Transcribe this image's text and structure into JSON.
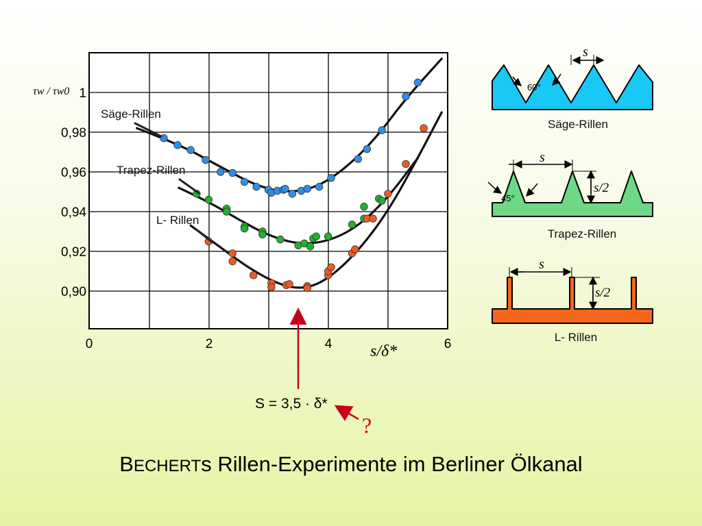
{
  "chart_data": [
    {
      "type": "scatter",
      "title": "",
      "xlabel": "s/δ*",
      "ylabel": "τw / τw0",
      "xlim": [
        0,
        6
      ],
      "ylim": [
        0.882,
        1.02
      ],
      "xticks": [
        "0",
        "2",
        "4",
        "6"
      ],
      "yticks": [
        "1",
        "0,98",
        "0,96",
        "0,94",
        "0,92",
        "0,90"
      ],
      "grid": true,
      "series": [
        {
          "name": "Säge-Rillen",
          "color": "#2f8fe8",
          "points": [
            [
              1.25,
              0.977
            ],
            [
              1.48,
              0.9735
            ],
            [
              1.7,
              0.971
            ],
            [
              1.95,
              0.966
            ],
            [
              2.2,
              0.96
            ],
            [
              2.4,
              0.9595
            ],
            [
              2.6,
              0.955
            ],
            [
              2.8,
              0.9525
            ],
            [
              3.0,
              0.951
            ],
            [
              3.05,
              0.9495
            ],
            [
              3.15,
              0.9505
            ],
            [
              3.25,
              0.951
            ],
            [
              3.28,
              0.9515
            ],
            [
              3.4,
              0.949
            ],
            [
              3.55,
              0.9505
            ],
            [
              3.65,
              0.9515
            ],
            [
              3.85,
              0.9525
            ],
            [
              4.05,
              0.957
            ],
            [
              4.5,
              0.9665
            ],
            [
              4.65,
              0.9715
            ],
            [
              4.9,
              0.981
            ],
            [
              5.3,
              0.998
            ],
            [
              5.5,
              1.005
            ]
          ],
          "fit": [
            [
              0.8,
              0.982
            ],
            [
              1.5,
              0.974
            ],
            [
              2.2,
              0.9625
            ],
            [
              2.8,
              0.953
            ],
            [
              3.3,
              0.9495
            ],
            [
              3.8,
              0.952
            ],
            [
              4.3,
              0.962
            ],
            [
              4.8,
              0.977
            ],
            [
              5.3,
              0.997
            ],
            [
              5.9,
              1.017
            ]
          ]
        },
        {
          "name": "Trapez-Rillen",
          "color": "#22b02e",
          "points": [
            [
              1.8,
              0.949
            ],
            [
              2.0,
              0.946
            ],
            [
              2.3,
              0.9415
            ],
            [
              2.3,
              0.94
            ],
            [
              2.6,
              0.9325
            ],
            [
              2.6,
              0.9315
            ],
            [
              2.9,
              0.93
            ],
            [
              2.9,
              0.9285
            ],
            [
              3.2,
              0.926
            ],
            [
              3.5,
              0.923
            ],
            [
              3.6,
              0.924
            ],
            [
              3.7,
              0.9225
            ],
            [
              3.75,
              0.9265
            ],
            [
              3.8,
              0.9275
            ],
            [
              4.0,
              0.9275
            ],
            [
              4.4,
              0.9335
            ],
            [
              4.6,
              0.9365
            ],
            [
              4.6,
              0.9425
            ],
            [
              4.85,
              0.9465
            ],
            [
              4.9,
              0.9455
            ]
          ],
          "fit": [
            [
              1.5,
              0.952
            ],
            [
              2.0,
              0.945
            ],
            [
              2.5,
              0.936
            ],
            [
              3.0,
              0.928
            ],
            [
              3.5,
              0.9235
            ],
            [
              4.0,
              0.925
            ],
            [
              4.5,
              0.9325
            ],
            [
              5.0,
              0.947
            ],
            [
              5.5,
              0.967
            ]
          ]
        },
        {
          "name": "L- Rillen",
          "color": "#ee5a22",
          "points": [
            [
              2.0,
              0.925
            ],
            [
              2.4,
              0.919
            ],
            [
              2.4,
              0.915
            ],
            [
              2.75,
              0.908
            ],
            [
              3.05,
              0.904
            ],
            [
              3.05,
              0.902
            ],
            [
              3.3,
              0.903
            ],
            [
              3.35,
              0.9035
            ],
            [
              3.65,
              0.9025
            ],
            [
              3.65,
              0.9015
            ],
            [
              4.0,
              0.908
            ],
            [
              4.0,
              0.91
            ],
            [
              4.05,
              0.912
            ],
            [
              4.4,
              0.919
            ],
            [
              4.45,
              0.921
            ],
            [
              4.65,
              0.9365
            ],
            [
              4.75,
              0.9365
            ],
            [
              5.0,
              0.949
            ],
            [
              5.3,
              0.964
            ],
            [
              5.6,
              0.982
            ]
          ],
          "fit": [
            [
              1.7,
              0.933
            ],
            [
              2.2,
              0.922
            ],
            [
              2.7,
              0.911
            ],
            [
              3.2,
              0.903
            ],
            [
              3.6,
              0.901
            ],
            [
              4.0,
              0.906
            ],
            [
              4.5,
              0.92
            ],
            [
              5.0,
              0.94
            ],
            [
              5.5,
              0.967
            ],
            [
              5.9,
              0.99
            ]
          ]
        }
      ],
      "annotations": [
        {
          "text": "S = 3,5 · δ*",
          "x": 3.5
        }
      ]
    }
  ],
  "text": {
    "s_label": "s",
    "s2_label": "s/2",
    "saege_angle": "60°",
    "trapez_angle": "45°",
    "saege_caption": "Säge-Rillen",
    "trapez_caption": "Trapez-Rillen",
    "l_caption": "L- Rillen",
    "qmark": "?",
    "title_B": "B",
    "title_echert": "ECHERT",
    "title_rest": "s Rillen-Experimente im Berliner Ölkanal"
  },
  "colors": {
    "saege_fill": "#19c8f5",
    "trapez_fill": "#6dd986",
    "l_fill": "#f4661c",
    "arrow": "#c8001e"
  }
}
